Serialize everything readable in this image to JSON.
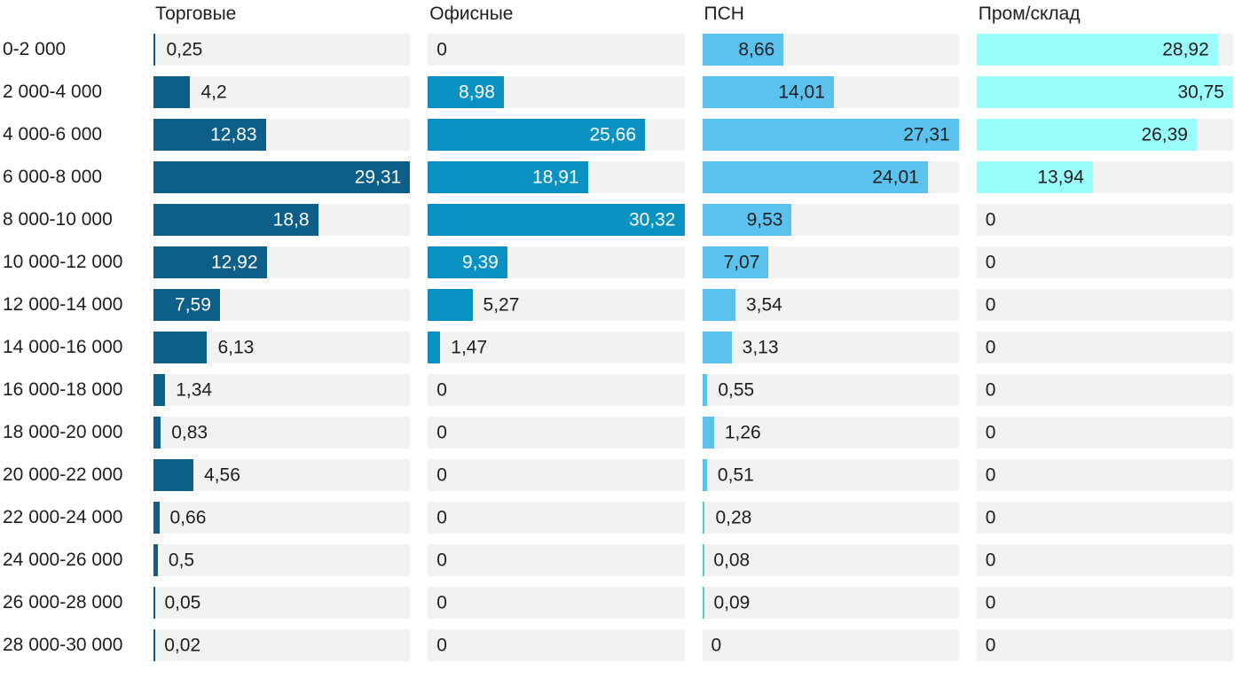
{
  "chart_data": {
    "type": "bar",
    "orientation": "horizontal",
    "title": "",
    "xlabel": "",
    "ylabel": "",
    "legend_position": "column-headers-top",
    "grid": false,
    "normalization": "per-column-max",
    "value_decimal_separator": ",",
    "track_color": "#f2f2f2",
    "text_color": "#1e1e1e",
    "background_color": "#ffffff",
    "categories": [
      "0-2 000",
      "2 000-4 000",
      "4 000-6 000",
      "6 000-8 000",
      "8 000-10 000",
      "10 000-12 000",
      "12 000-14 000",
      "14 000-16 000",
      "16 000-18 000",
      "18 000-20 000",
      "20 000-22 000",
      "22 000-24 000",
      "24 000-26 000",
      "26 000-28 000",
      "28 000-30 000"
    ],
    "series": [
      {
        "name": "Торговые",
        "key": "torgovye",
        "color": "#0d5e88",
        "inside_label_color": "#ffffff",
        "values": [
          0.25,
          4.2,
          12.83,
          29.31,
          18.8,
          12.92,
          7.59,
          6.13,
          1.34,
          0.83,
          4.56,
          0.66,
          0.5,
          0.05,
          0.02
        ]
      },
      {
        "name": "Офисные",
        "key": "ofisnye",
        "color": "#0a93c2",
        "inside_label_color": "#ffffff",
        "values": [
          0,
          8.98,
          25.66,
          18.91,
          30.32,
          9.39,
          5.27,
          1.47,
          0,
          0,
          0,
          0,
          0,
          0,
          0
        ]
      },
      {
        "name": "ПСН",
        "key": "psn",
        "color": "#5bc2ee",
        "inside_label_color": "#1e1e1e",
        "values": [
          8.66,
          14.01,
          27.31,
          24.01,
          9.53,
          7.07,
          3.54,
          3.13,
          0.55,
          1.26,
          0.51,
          0.28,
          0.08,
          0.09,
          0
        ]
      },
      {
        "name": "Пром/склад",
        "key": "prom-sklad",
        "color": "#9bfcfc",
        "inside_label_color": "#1e1e1e",
        "values": [
          28.92,
          30.75,
          26.39,
          13.94,
          0,
          0,
          0,
          0,
          0,
          0,
          0,
          0,
          0,
          0,
          0
        ]
      }
    ]
  }
}
